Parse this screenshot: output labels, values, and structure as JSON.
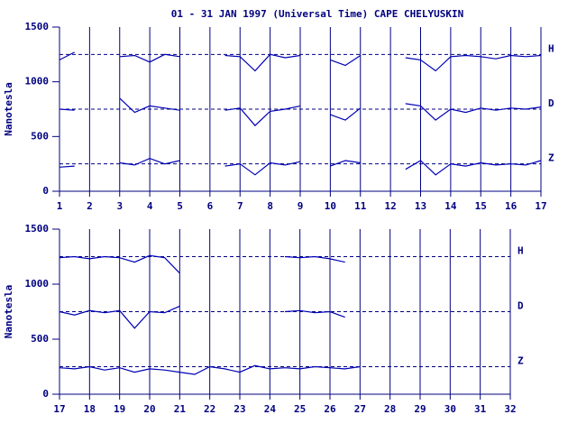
{
  "chart_data": [
    {
      "type": "line",
      "title": "01 - 31 JAN 1997 (Universal Time) CAPE CHELYUSKIN",
      "ylabel": "Nanotesla",
      "x": [
        1,
        1.5,
        2,
        2.5,
        3,
        3.5,
        4,
        4.5,
        5,
        5.5,
        6,
        6.5,
        7,
        7.5,
        8,
        8.5,
        9,
        9.5,
        10,
        10.5,
        11,
        11.5,
        12,
        12.5,
        13,
        13.5,
        14,
        14.5,
        15,
        15.5,
        16,
        16.5,
        17
      ],
      "xlim": [
        1,
        17
      ],
      "xticks": [
        1,
        2,
        3,
        4,
        5,
        6,
        7,
        8,
        9,
        10,
        11,
        12,
        13,
        14,
        15,
        16,
        17
      ],
      "ylim": [
        0,
        1500
      ],
      "yticks": [
        0,
        500,
        1000,
        1500
      ],
      "hlines": [
        1250,
        750,
        250
      ],
      "grid": true,
      "series": [
        {
          "name": "H",
          "color": "#0000b4",
          "values": [
            1200,
            1270,
            null,
            null,
            1230,
            1240,
            1180,
            1250,
            1230,
            null,
            null,
            1240,
            1230,
            1100,
            1250,
            1220,
            1240,
            null,
            1200,
            1150,
            1240,
            null,
            null,
            1220,
            1200,
            1100,
            1230,
            1240,
            1230,
            1210,
            1240,
            1230,
            1240
          ]
        },
        {
          "name": "D",
          "color": "#0000b4",
          "values": [
            750,
            740,
            null,
            null,
            850,
            720,
            780,
            760,
            740,
            null,
            null,
            740,
            760,
            600,
            730,
            750,
            780,
            null,
            700,
            650,
            760,
            null,
            null,
            800,
            780,
            650,
            750,
            720,
            760,
            740,
            760,
            750,
            770
          ]
        },
        {
          "name": "Z",
          "color": "#0000b4",
          "values": [
            220,
            230,
            null,
            null,
            260,
            240,
            300,
            250,
            280,
            null,
            null,
            230,
            250,
            150,
            260,
            240,
            270,
            null,
            230,
            280,
            260,
            null,
            null,
            200,
            280,
            150,
            250,
            230,
            260,
            240,
            250,
            240,
            280
          ]
        }
      ]
    },
    {
      "type": "line",
      "ylabel": "Nanotesla",
      "x": [
        17,
        17.5,
        18,
        18.5,
        19,
        19.5,
        20,
        20.5,
        21,
        21.5,
        22,
        22.5,
        23,
        23.5,
        24,
        24.5,
        25,
        25.5,
        26,
        26.5,
        27,
        27.5,
        28,
        28.5,
        29,
        29.5,
        30,
        30.5,
        31,
        31.5,
        32
      ],
      "xlim": [
        17,
        32
      ],
      "xticks": [
        17,
        18,
        19,
        20,
        21,
        22,
        23,
        24,
        25,
        26,
        27,
        28,
        29,
        30,
        31,
        32
      ],
      "ylim": [
        0,
        1500
      ],
      "yticks": [
        0,
        500,
        1000,
        1500
      ],
      "hlines": [
        1250,
        750,
        250
      ],
      "grid": true,
      "series": [
        {
          "name": "H",
          "color": "#0000b4",
          "values": [
            1240,
            1250,
            1230,
            1250,
            1240,
            1200,
            1260,
            1240,
            1100,
            null,
            null,
            null,
            null,
            null,
            null,
            1250,
            1240,
            1250,
            1230,
            1200,
            null,
            null,
            null,
            null,
            null,
            null,
            null,
            null,
            null,
            null,
            null
          ]
        },
        {
          "name": "D",
          "color": "#0000b4",
          "values": [
            750,
            720,
            760,
            740,
            760,
            600,
            750,
            740,
            800,
            null,
            null,
            null,
            null,
            null,
            null,
            750,
            760,
            740,
            750,
            700,
            null,
            null,
            null,
            null,
            null,
            null,
            null,
            null,
            null,
            null,
            null
          ]
        },
        {
          "name": "Z",
          "color": "#0000b4",
          "values": [
            240,
            230,
            250,
            220,
            240,
            200,
            230,
            220,
            200,
            180,
            250,
            230,
            200,
            260,
            230,
            240,
            230,
            250,
            240,
            230,
            250,
            null,
            null,
            null,
            null,
            null,
            null,
            null,
            null,
            null,
            null
          ]
        }
      ]
    }
  ]
}
